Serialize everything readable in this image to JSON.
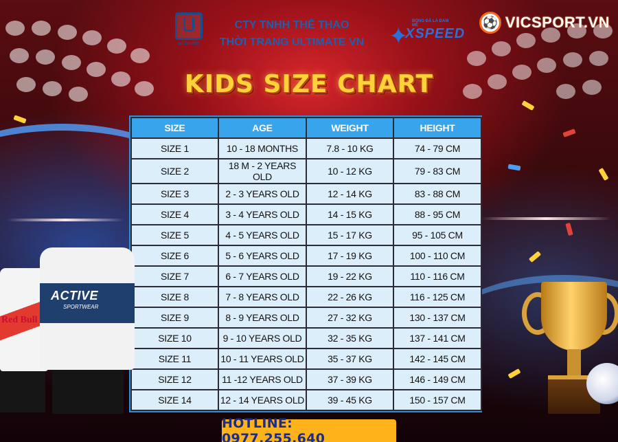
{
  "header": {
    "ultimate_logo_text": "ultimate",
    "company_line1": "CTY TNHH THỂ THAO",
    "company_line2": "THỜI TRANG ULTIMATE VN",
    "xspeed_tagline": "BÓNG ĐÁ LÀ ĐAM MÊ",
    "xspeed_logo_text": "XSPEED",
    "site_logo": "VICSPORT.VN"
  },
  "title": "KIDS SIZE CHART",
  "table": {
    "headers": [
      "SIZE",
      "AGE",
      "WEIGHT",
      "HEIGHT"
    ],
    "rows": [
      [
        "SIZE 1",
        "10 - 18 MONTHS",
        "7.8 - 10 KG",
        "74 - 79 CM"
      ],
      [
        "SIZE 2",
        "18 M - 2 YEARS OLD",
        "10 - 12 KG",
        "79 - 83 CM"
      ],
      [
        "SIZE 3",
        "2 - 3 YEARS OLD",
        "12 - 14 KG",
        "83 - 88 CM"
      ],
      [
        "SIZE 4",
        "3 - 4 YEARS OLD",
        "14 - 15 KG",
        "88 - 95 CM"
      ],
      [
        "SIZE 5",
        "4 - 5 YEARS OLD",
        "15 - 17 KG",
        "95 - 105 CM"
      ],
      [
        "SIZE 6",
        "5 - 6 YEARS OLD",
        "17 - 19 KG",
        "100 - 110 CM"
      ],
      [
        "SIZE 7",
        "6 - 7 YEARS OLD",
        "19 - 22 KG",
        "110 - 116 CM"
      ],
      [
        "SIZE 8",
        "7 - 8 YEARS OLD",
        "22 - 26 KG",
        "116 - 125 CM"
      ],
      [
        "SIZE 9",
        "8 - 9 YEARS OLD",
        "27 - 32 KG",
        "130 - 137 CM"
      ],
      [
        "SIZE 10",
        "9 - 10 YEARS OLD",
        "32 - 35 KG",
        "137 - 141 CM"
      ],
      [
        "SIZE 11",
        "10 - 11 YEARS OLD",
        "35 - 37 KG",
        "142 - 145 CM"
      ],
      [
        "SIZE 12",
        "11 -12 YEARS OLD",
        "37 - 39 KG",
        "146 - 149 CM"
      ],
      [
        "SIZE 14",
        "12 - 14 YEARS OLD",
        "39 - 45 KG",
        "150 - 157 CM"
      ]
    ]
  },
  "jerseys": {
    "back_sponsor": "Red Bull",
    "front_brand": "ACTIVE",
    "front_sub": "SPORTWEAR"
  },
  "hotline": "HOTLINE: 0977.255.640",
  "colors": {
    "title": "#ffd23a",
    "header_cell": "#38a4ec",
    "body_cell": "#ddeefb",
    "hotline_bg": "#ffb31a",
    "hotline_text": "#1b2d8c",
    "company_text": "#1f5fae"
  },
  "icons": [
    "ultimate-logo-icon",
    "xspeed-star-icon",
    "soccer-ball-icon",
    "trophy-icon"
  ]
}
